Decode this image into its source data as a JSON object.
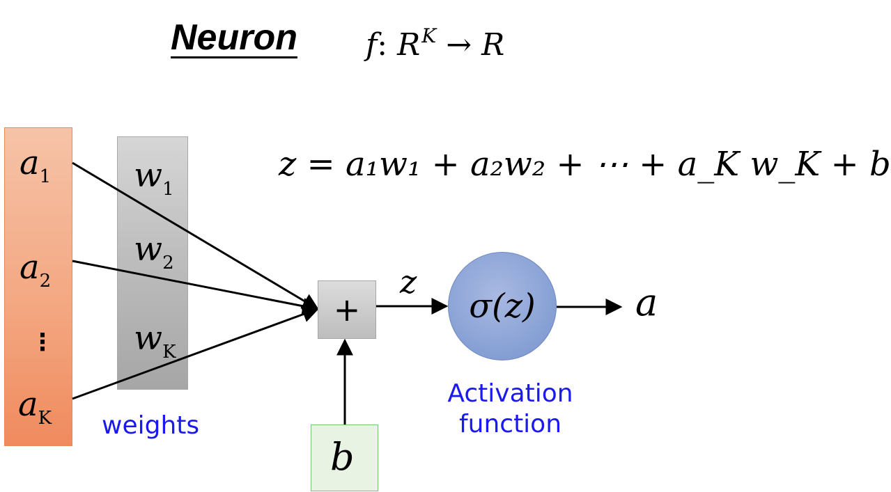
{
  "title": "Neuron",
  "signature": {
    "f": "f",
    "colon": ":",
    "domain": "R",
    "domain_sup": "K",
    "arrow": "→",
    "codomain": "R"
  },
  "equation": "z = a₁w₁ + a₂w₂ + ⋯ + a_K w_K + b",
  "inputs": [
    {
      "base": "a",
      "sub": "1"
    },
    {
      "base": "a",
      "sub": "2"
    },
    {
      "base": "a",
      "sub": "K"
    }
  ],
  "input_ellipsis": "⋮",
  "weights": [
    {
      "base": "w",
      "sub": "1"
    },
    {
      "base": "w",
      "sub": "2"
    },
    {
      "base": "w",
      "sub": "K"
    }
  ],
  "weights_label": "weights",
  "sum_symbol": "+",
  "bias_symbol": "b",
  "z_label": "z",
  "activation_symbol": "σ(z)",
  "activation_label_line1": "Activation",
  "activation_label_line2": "function",
  "output_symbol": "a",
  "colors": {
    "input_fill": "#f3a57e",
    "weight_fill": "#bcbcbc",
    "bias_fill": "#e9f3e3",
    "bias_border": "#7cc07a",
    "activation_fill": "#8aa3d6",
    "label_blue": "#1a1af0"
  }
}
